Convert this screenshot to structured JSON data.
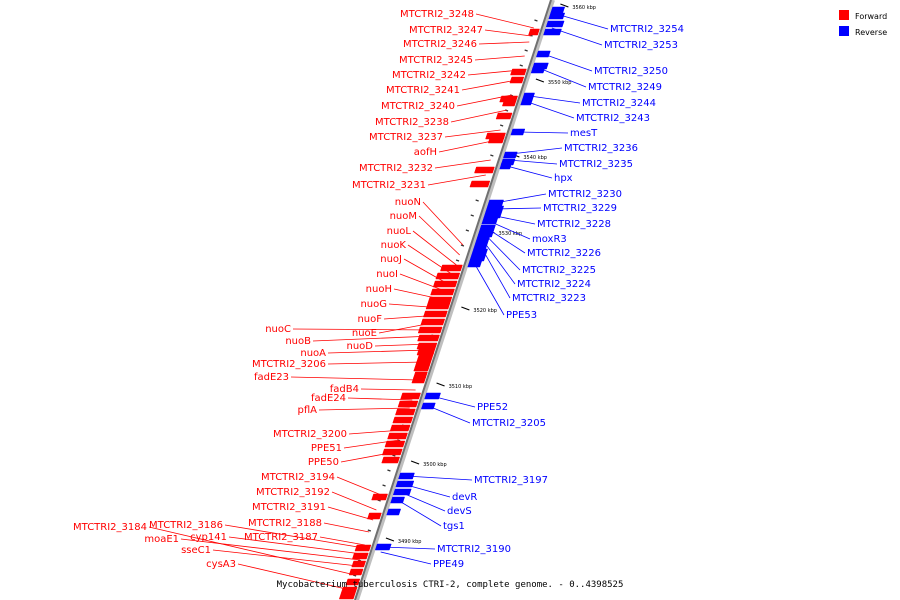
{
  "caption": "Mycobacterium tuberculosis CTRI-2, complete genome. - 0..4398525",
  "legend": [
    {
      "label": "Forward",
      "color": "#ff0000"
    },
    {
      "label": "Reverse",
      "color": "#0000ff"
    }
  ],
  "ticks": [
    {
      "label": "3560 kbp",
      "pos": 3560
    },
    {
      "label": "3550 kbp",
      "pos": 3550
    },
    {
      "label": "3540 kbp",
      "pos": 3540
    },
    {
      "label": "3530 kbp",
      "pos": 3530
    },
    {
      "label": "3520 kbp",
      "pos": 3520
    },
    {
      "label": "3510 kbp",
      "pos": 3510
    },
    {
      "label": "3500 kbp",
      "pos": 3500
    },
    {
      "label": "3490 kbp",
      "pos": 3490
    }
  ],
  "forward_genes": [
    "MTCTRI2_3248",
    "MTCTRI2_3247",
    "MTCTRI2_3246",
    "MTCTRI2_3245",
    "MTCTRI2_3242",
    "MTCTRI2_3241",
    "MTCTRI2_3240",
    "MTCTRI2_3238",
    "MTCTRI2_3237",
    "aofH",
    "MTCTRI2_3232",
    "MTCTRI2_3231",
    "nuoN",
    "nuoM",
    "nuoL",
    "nuoK",
    "nuoJ",
    "nuoI",
    "nuoH",
    "nuoG",
    "nuoF",
    "nuoE",
    "nuoC",
    "nuoB",
    "nuoD",
    "nuoA",
    "MTCTRI2_3206",
    "fadE23",
    "fadB4",
    "fadE24",
    "pflA",
    "MTCTRI2_3200",
    "PPE51",
    "PPE50",
    "MTCTRI2_3194",
    "MTCTRI2_3192",
    "MTCTRI2_3191",
    "MTCTRI2_3188",
    "MTCTRI2_3184",
    "MTCTRI2_3186",
    "moaE1",
    "cyp141",
    "MTCTRI2_3187",
    "sseC1",
    "cysA3"
  ],
  "reverse_genes": [
    "MTCTRI2_3254",
    "MTCTRI2_3253",
    "MTCTRI2_3250",
    "MTCTRI2_3249",
    "MTCTRI2_3244",
    "MTCTRI2_3243",
    "mesT",
    "MTCTRI2_3236",
    "MTCTRI2_3235",
    "hpx",
    "MTCTRI2_3230",
    "MTCTRI2_3229",
    "MTCTRI2_3228",
    "moxR3",
    "MTCTRI2_3226",
    "MTCTRI2_3225",
    "MTCTRI2_3224",
    "MTCTRI2_3223",
    "PPE53",
    "PPE52",
    "MTCTRI2_3205",
    "MTCTRI2_3197",
    "devR",
    "devS",
    "tgs1",
    "MTCTRI2_3190",
    "PPE49"
  ]
}
